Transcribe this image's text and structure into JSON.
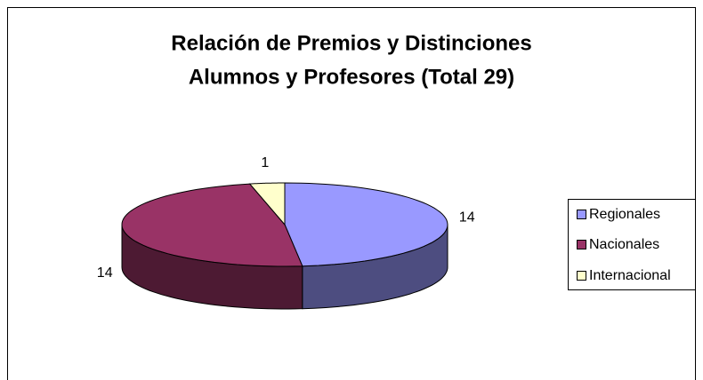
{
  "chart_data": {
    "type": "pie",
    "title": [
      "Relación de Premios y Distinciones",
      "Alumnos y Profesores  (Total 29)"
    ],
    "categories": [
      "Regionales",
      "Nacionales",
      "Internacional"
    ],
    "values": [
      14,
      14,
      1
    ],
    "colors": [
      "#9999ff",
      "#993366",
      "#ffffcc"
    ],
    "legend": "right"
  }
}
